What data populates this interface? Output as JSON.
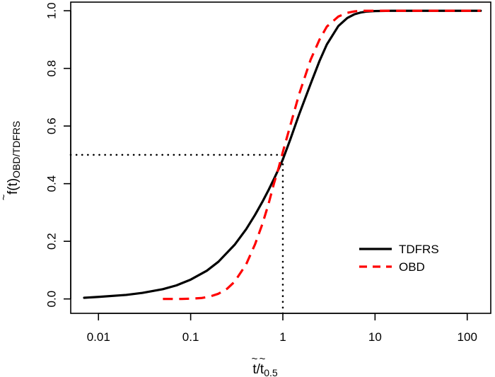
{
  "chart_data": {
    "type": "line",
    "title": "",
    "x_scale": "log10",
    "xlim": [
      0.005,
      180
    ],
    "ylim": [
      -0.05,
      1.03
    ],
    "xlabel": {
      "base": "t",
      "over": "~",
      "slash": "/",
      "base2": "t",
      "sub2": "0.5"
    },
    "ylabel": {
      "prefix": "f(",
      "var": "t",
      "accent": "~",
      "close": ")",
      "sub": "OBD/TDFRS"
    },
    "x_ticks": [
      {
        "value": 0.01,
        "label": "0.01"
      },
      {
        "value": 0.1,
        "label": "0.1"
      },
      {
        "value": 1,
        "label": "1"
      },
      {
        "value": 10,
        "label": "10"
      },
      {
        "value": 100,
        "label": "100"
      }
    ],
    "y_ticks": [
      {
        "value": 0.0,
        "label": "0.0"
      },
      {
        "value": 0.2,
        "label": "0.2"
      },
      {
        "value": 0.4,
        "label": "0.4"
      },
      {
        "value": 0.6,
        "label": "0.6"
      },
      {
        "value": 0.8,
        "label": "0.8"
      },
      {
        "value": 1.0,
        "label": "1.0"
      }
    ],
    "series": [
      {
        "name": "TDFRS",
        "color": "#000000",
        "style": "solid",
        "x": [
          0.007,
          0.01,
          0.02,
          0.03,
          0.05,
          0.07,
          0.1,
          0.15,
          0.2,
          0.3,
          0.4,
          0.5,
          0.6,
          0.7,
          0.8,
          0.9,
          1,
          1.2,
          1.5,
          2,
          2.5,
          3,
          4,
          5,
          6,
          7,
          8,
          10,
          15,
          20,
          50,
          100,
          140
        ],
        "y": [
          0.004,
          0.007,
          0.014,
          0.021,
          0.034,
          0.047,
          0.067,
          0.098,
          0.129,
          0.188,
          0.242,
          0.292,
          0.337,
          0.378,
          0.416,
          0.451,
          0.484,
          0.552,
          0.64,
          0.746,
          0.826,
          0.883,
          0.947,
          0.975,
          0.988,
          0.994,
          0.997,
          0.999,
          1.0,
          1.0,
          1.0,
          1.0,
          1.0
        ]
      },
      {
        "name": "OBD",
        "color": "#ff0000",
        "style": "dashed",
        "x": [
          0.05,
          0.08,
          0.1,
          0.13,
          0.16,
          0.2,
          0.25,
          0.3,
          0.4,
          0.5,
          0.6,
          0.7,
          0.8,
          0.9,
          1,
          1.2,
          1.5,
          2,
          2.5,
          3,
          4,
          5,
          6,
          7,
          10,
          20,
          50,
          100,
          140
        ],
        "y": [
          0.0,
          0.0,
          0.001,
          0.003,
          0.008,
          0.018,
          0.036,
          0.06,
          0.12,
          0.19,
          0.26,
          0.33,
          0.4,
          0.455,
          0.51,
          0.6,
          0.71,
          0.83,
          0.9,
          0.945,
          0.98,
          0.993,
          0.998,
          1.0,
          1.0,
          1.0,
          1.0,
          1.0,
          1.0
        ]
      }
    ],
    "reference_lines": [
      {
        "kind": "horizontal",
        "y": 0.5,
        "x_from": 0.005,
        "x_to": 1,
        "style": "dotted"
      },
      {
        "kind": "vertical",
        "x": 1,
        "y_from": -0.05,
        "y_to": 0.5,
        "style": "dotted"
      }
    ],
    "legend": {
      "position": "bottom-right",
      "entries": [
        {
          "label": "TDFRS",
          "color": "#000000",
          "style": "solid"
        },
        {
          "label": "OBD",
          "color": "#ff0000",
          "style": "dashed"
        }
      ]
    }
  }
}
